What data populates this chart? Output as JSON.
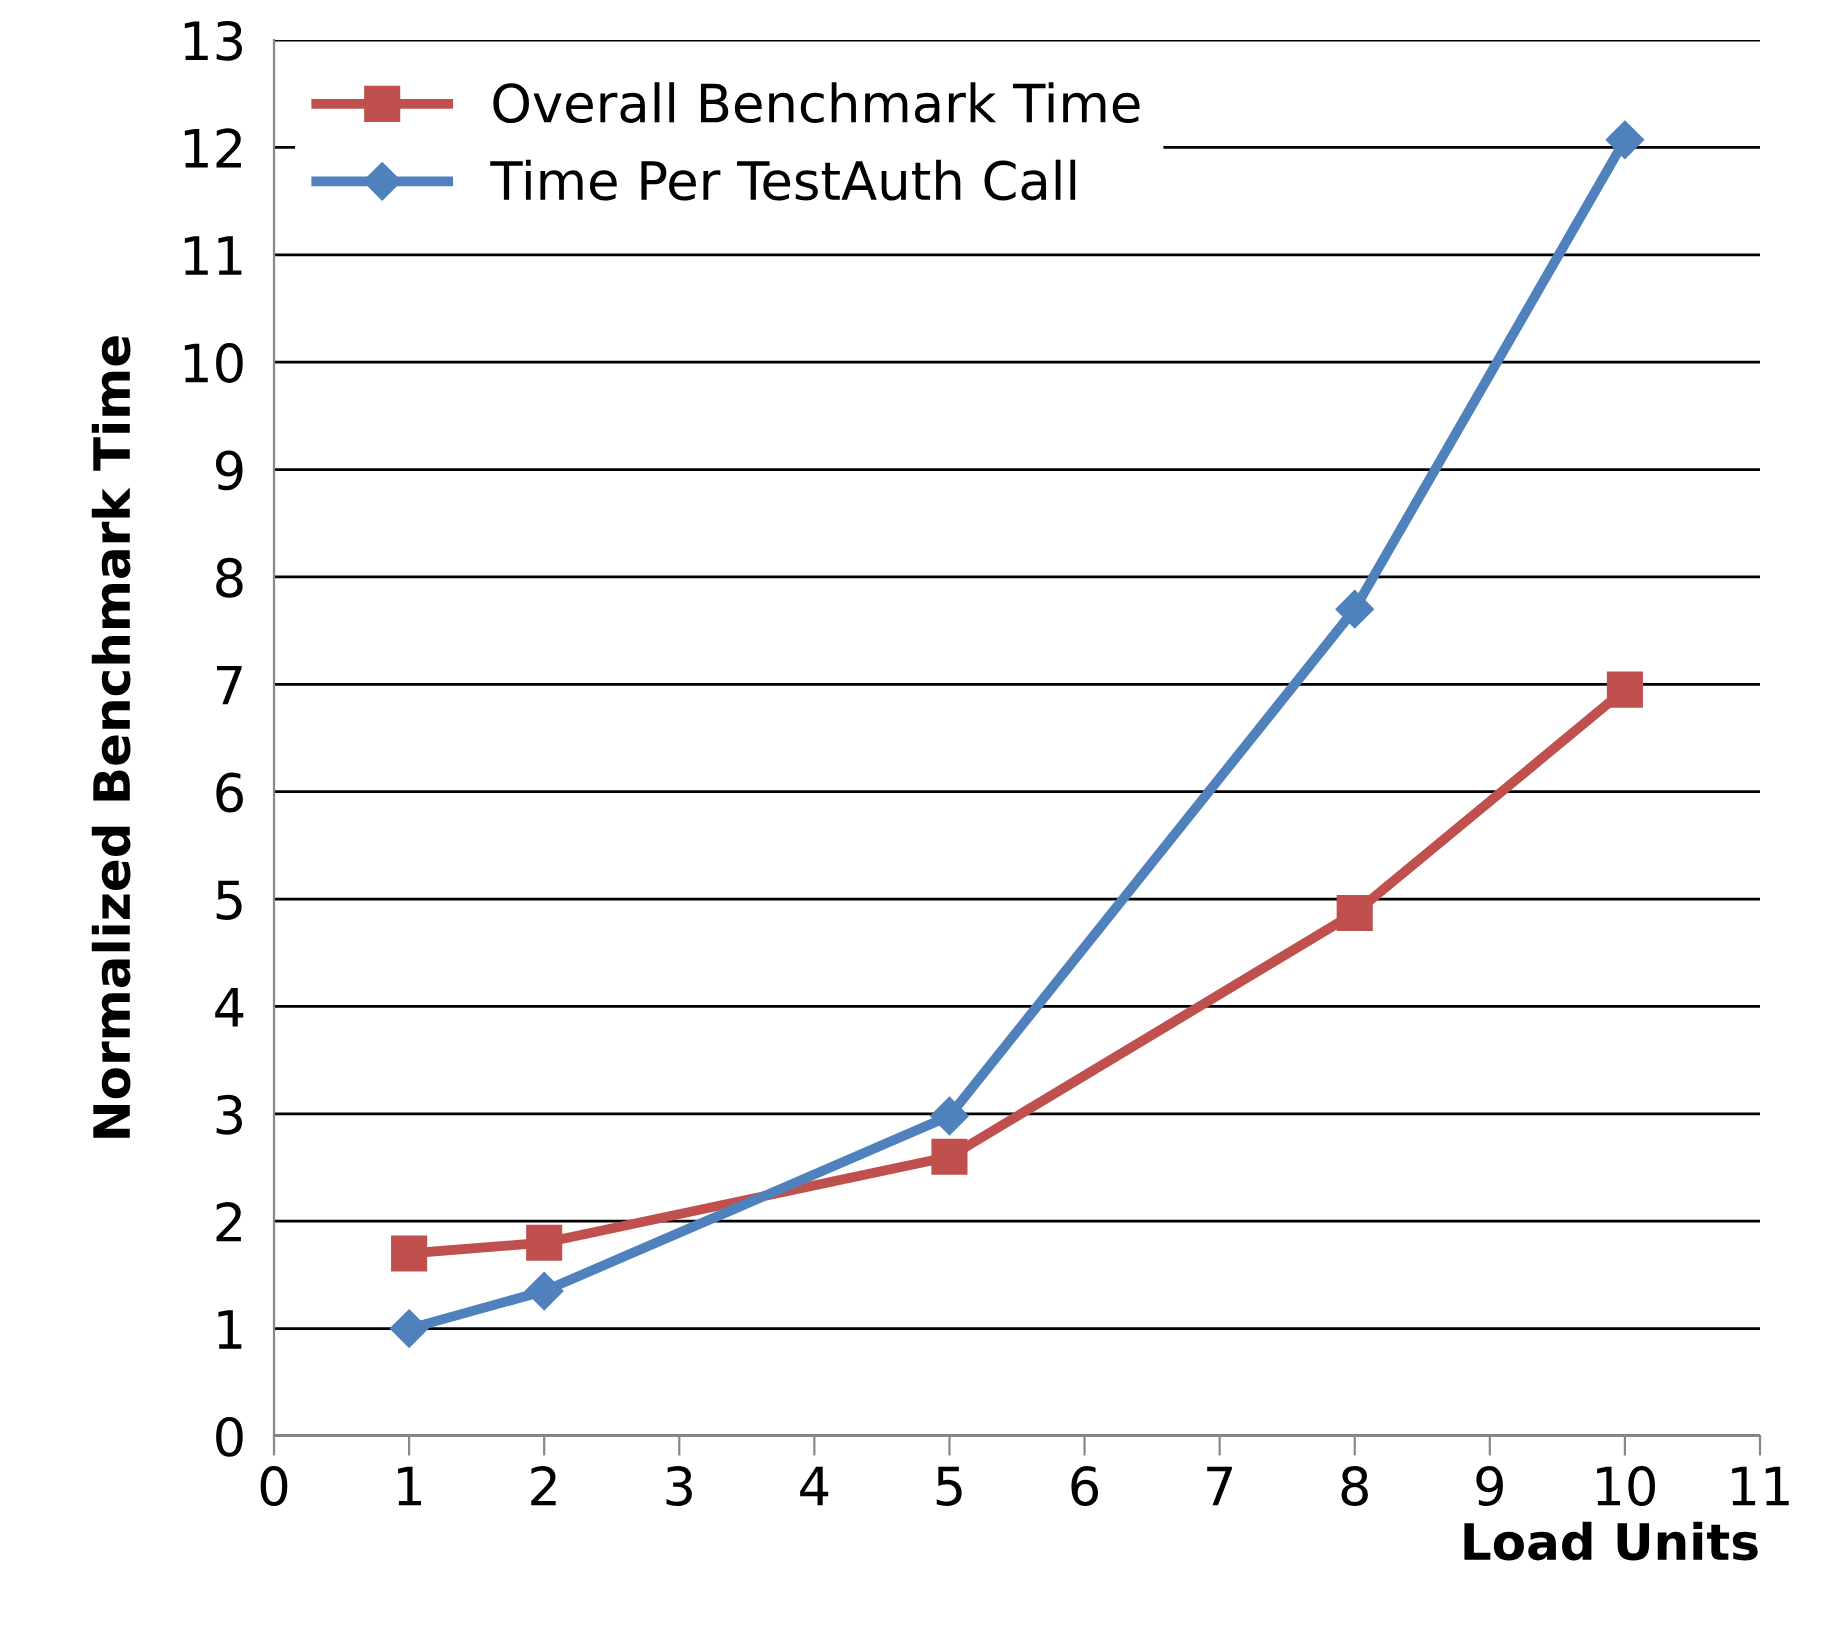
{
  "chart_data": {
    "type": "line",
    "xlabel": "Load Units",
    "ylabel": "Normalized Benchmark Time",
    "x": [
      1,
      2,
      5,
      8,
      10
    ],
    "series": [
      {
        "name": "Overall Benchmark Time",
        "color": "#c0504d",
        "marker": "square",
        "values": [
          1.7,
          1.8,
          2.6,
          4.87,
          6.95
        ]
      },
      {
        "name": "Time Per TestAuth Call",
        "color": "#4f81bd",
        "marker": "diamond",
        "values": [
          1.0,
          1.35,
          2.98,
          7.7,
          12.07
        ]
      }
    ],
    "xlim": [
      0,
      11
    ],
    "xticks": [
      0,
      1,
      2,
      3,
      4,
      5,
      6,
      7,
      8,
      9,
      10,
      11
    ],
    "ylim": [
      0,
      13
    ],
    "yticks": [
      0,
      1,
      2,
      3,
      4,
      5,
      6,
      7,
      8,
      9,
      10,
      11,
      12,
      13
    ],
    "grid": "y",
    "legend": "top left",
    "line_style": "solid"
  }
}
